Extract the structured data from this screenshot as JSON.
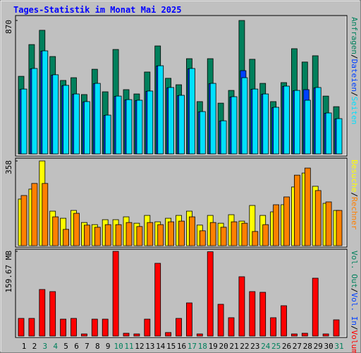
{
  "chart_data": [
    {
      "type": "bar",
      "title": "Tages-Statistik im Monat Mai 2025",
      "legend_separator": "/",
      "categories": [
        1,
        2,
        3,
        4,
        5,
        6,
        7,
        8,
        9,
        10,
        11,
        12,
        13,
        14,
        15,
        16,
        17,
        18,
        19,
        20,
        21,
        22,
        23,
        24,
        25,
        26,
        27,
        28,
        29,
        30,
        31
      ],
      "ylim": [
        0,
        870
      ],
      "yticks": [
        870
      ],
      "series": [
        {
          "name": "Anfragen",
          "color": "#00805c",
          "values": [
            506,
            713,
            806,
            635,
            479,
            497,
            387,
            552,
            405,
            681,
            419,
            391,
            534,
            704,
            493,
            451,
            621,
            341,
            621,
            331,
            414,
            870,
            617,
            460,
            341,
            465,
            686,
            599,
            640,
            377,
            308
          ]
        },
        {
          "name": "Dateien",
          "color": "#0040ff",
          "values": [
            420,
            555,
            670,
            514,
            445,
            389,
            339,
            458,
            251,
            375,
            352,
            348,
            408,
            573,
            431,
            380,
            555,
            274,
            458,
            214,
            371,
            543,
            421,
            389,
            302,
            440,
            412,
            419,
            431,
            265,
            228
          ]
        },
        {
          "name": "Seiten",
          "color": "#00e0ff",
          "values": [
            423,
            557,
            672,
            516,
            447,
            391,
            341,
            460,
            253,
            377,
            354,
            350,
            410,
            575,
            433,
            382,
            557,
            276,
            460,
            216,
            373,
            497,
            423,
            391,
            304,
            442,
            414,
            350,
            433,
            267,
            230
          ]
        }
      ]
    },
    {
      "type": "bar",
      "legend_separator": "/",
      "categories": [
        1,
        2,
        3,
        4,
        5,
        6,
        7,
        8,
        9,
        10,
        11,
        12,
        13,
        14,
        15,
        16,
        17,
        18,
        19,
        20,
        21,
        22,
        23,
        24,
        25,
        26,
        27,
        28,
        29,
        30,
        31
      ],
      "ylim": [
        0,
        358
      ],
      "yticks": [
        358
      ],
      "series": [
        {
          "name": "Besuche",
          "color": "#ffff00",
          "values": [
            197,
            239,
            358,
            146,
            116,
            149,
            98,
            89,
            110,
            110,
            122,
            95,
            128,
            101,
            116,
            128,
            146,
            87,
            128,
            95,
            131,
            104,
            170,
            128,
            143,
            173,
            248,
            307,
            251,
            179,
            149
          ]
        },
        {
          "name": "Rechner",
          "color": "#ff8000",
          "values": [
            212,
            263,
            263,
            122,
            69,
            137,
            87,
            78,
            89,
            89,
            98,
            81,
            98,
            89,
            101,
            104,
            122,
            63,
            98,
            78,
            101,
            95,
            60,
            89,
            173,
            206,
            298,
            328,
            233,
            185,
            149
          ]
        }
      ]
    },
    {
      "type": "bar",
      "legend_separator": "/",
      "categories": [
        1,
        2,
        3,
        4,
        5,
        6,
        7,
        8,
        9,
        10,
        11,
        12,
        13,
        14,
        15,
        16,
        17,
        18,
        19,
        20,
        21,
        22,
        23,
        24,
        25,
        26,
        27,
        28,
        29,
        30,
        31
      ],
      "category_colors": [
        "#000000",
        "#000000",
        "#00805c",
        "#00805c",
        "#000000",
        "#000000",
        "#000000",
        "#000000",
        "#000000",
        "#00805c",
        "#00805c",
        "#000000",
        "#000000",
        "#000000",
        "#000000",
        "#000000",
        "#00805c",
        "#00805c",
        "#000000",
        "#000000",
        "#000000",
        "#000000",
        "#000000",
        "#00805c",
        "#00805c",
        "#000000",
        "#000000",
        "#000000",
        "#000000",
        "#000000",
        "#00805c"
      ],
      "ylim": [
        0,
        159.67
      ],
      "yticks": [
        {
          "value": 159.67,
          "label": "159.67 MB"
        }
      ],
      "series": [
        {
          "name": "Vol. Out",
          "color": "#00805c"
        },
        {
          "name": "Vol. In",
          "color": "#0040ff"
        },
        {
          "name": "Volumen",
          "color": "#ff0000",
          "values": [
            33.3,
            33.3,
            87.8,
            83.8,
            31.9,
            33.3,
            4.0,
            31.9,
            31.9,
            159.67,
            5.3,
            4.0,
            31.9,
            137.1,
            6.7,
            33.3,
            62.5,
            4.0,
            158.9,
            59.9,
            34.6,
            111.8,
            83.8,
            82.5,
            34.6,
            57.2,
            4.0,
            5.3,
            109.1,
            4.0,
            30.6
          ]
        }
      ]
    }
  ]
}
